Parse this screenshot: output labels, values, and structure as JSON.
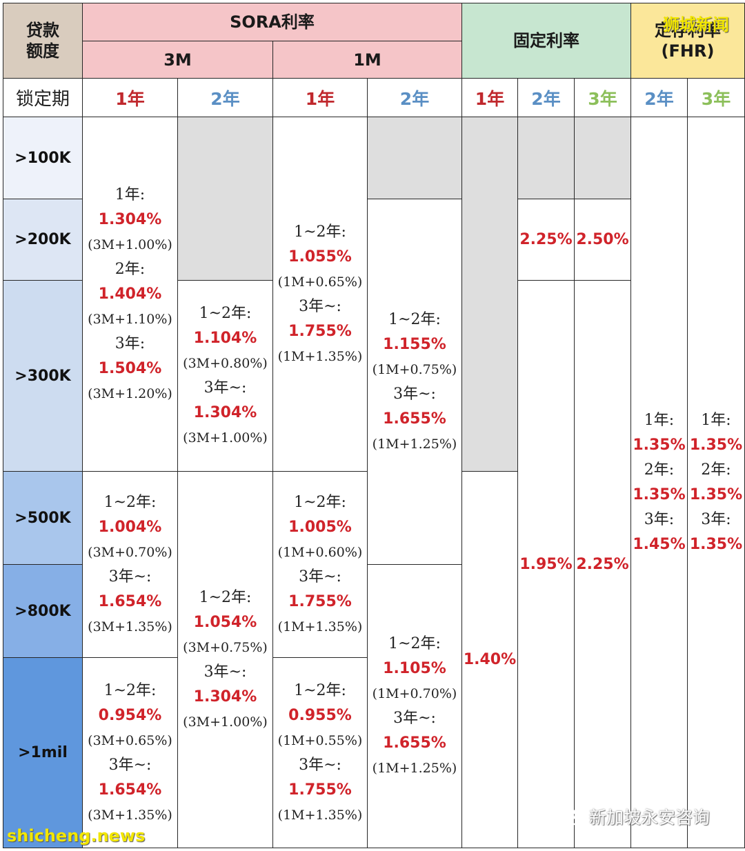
{
  "header": {
    "loan_amount": "贷款\n额度",
    "sora": "SORA利率",
    "sora_3m": "3M",
    "sora_1m": "1M",
    "fixed": "固定利率",
    "fhr": "定存利率\n(FHR)",
    "lock_period": "锁定期",
    "year_cols": [
      "1年",
      "2年",
      "1年",
      "2年",
      "1年",
      "2年",
      "3年",
      "2年",
      "3年"
    ]
  },
  "tiers": [
    ">100K",
    ">200K",
    ">300K",
    ">500K",
    ">800K",
    ">1mil"
  ],
  "sora3m_1y": {
    "a": [
      [
        "1年:",
        "1.304%",
        "(3M+1.00%)"
      ],
      [
        "2年:",
        "1.404%",
        "(3M+1.10%)"
      ],
      [
        "3年:",
        "1.504%",
        "(3M+1.20%)"
      ]
    ],
    "b": [
      [
        "1~2年:",
        "1.004%",
        "(3M+0.70%)"
      ],
      [
        "3年~:",
        "1.654%",
        "(3M+1.35%)"
      ]
    ],
    "c": [
      [
        "1~2年:",
        "0.954%",
        "(3M+0.65%)"
      ],
      [
        "3年~:",
        "1.654%",
        "(3M+1.35%)"
      ]
    ]
  },
  "sora3m_2y": {
    "a": [
      [
        "1~2年:",
        "1.104%",
        "(3M+0.80%)"
      ],
      [
        "3年~:",
        "1.304%",
        "(3M+1.00%)"
      ]
    ],
    "b": [
      [
        "1~2年:",
        "1.054%",
        "(3M+0.75%)"
      ],
      [
        "3年~:",
        "1.304%",
        "(3M+1.00%)"
      ]
    ]
  },
  "sora1m_1y": {
    "a": [
      [
        "1~2年:",
        "1.055%",
        "(1M+0.65%)"
      ],
      [
        "3年~:",
        "1.755%",
        "(1M+1.35%)"
      ]
    ],
    "b": [
      [
        "1~2年:",
        "1.005%",
        "(1M+0.60%)"
      ],
      [
        "3年~:",
        "1.755%",
        "(1M+1.35%)"
      ]
    ],
    "c": [
      [
        "1~2年:",
        "0.955%",
        "(1M+0.55%)"
      ],
      [
        "3年~:",
        "1.755%",
        "(1M+1.35%)"
      ]
    ]
  },
  "sora1m_2y": {
    "a": [
      [
        "1~2年:",
        "1.155%",
        "(1M+0.75%)"
      ],
      [
        "3年~:",
        "1.655%",
        "(1M+1.25%)"
      ]
    ],
    "b": [
      [
        "1~2年:",
        "1.105%",
        "(1M+0.70%)"
      ],
      [
        "3年~:",
        "1.655%",
        "(1M+1.25%)"
      ]
    ]
  },
  "fixed_rates": {
    "y1": "1.40%",
    "y2_top": "2.25%",
    "y3_top": "2.50%",
    "y2_bottom": "1.95%",
    "y3_bottom": "2.25%"
  },
  "fhr_2y": [
    [
      "1年:",
      "1.35%"
    ],
    [
      "2年:",
      "1.35%"
    ],
    [
      "3年:",
      "1.45%"
    ]
  ],
  "fhr_3y": [
    [
      "1年:",
      "1.35%"
    ],
    [
      "2年:",
      "1.35%"
    ],
    [
      "3年:",
      "1.35%"
    ]
  ],
  "watermarks": {
    "top": "狮城新闻",
    "bottom": "shicheng.news",
    "wechat": "新加坡永安咨询"
  },
  "colors": {
    "tier_bg": [
      "#eef2fa",
      "#dde6f4",
      "#cddcf0",
      "#a9c6ec",
      "#86afe6",
      "#5f97dd"
    ]
  }
}
